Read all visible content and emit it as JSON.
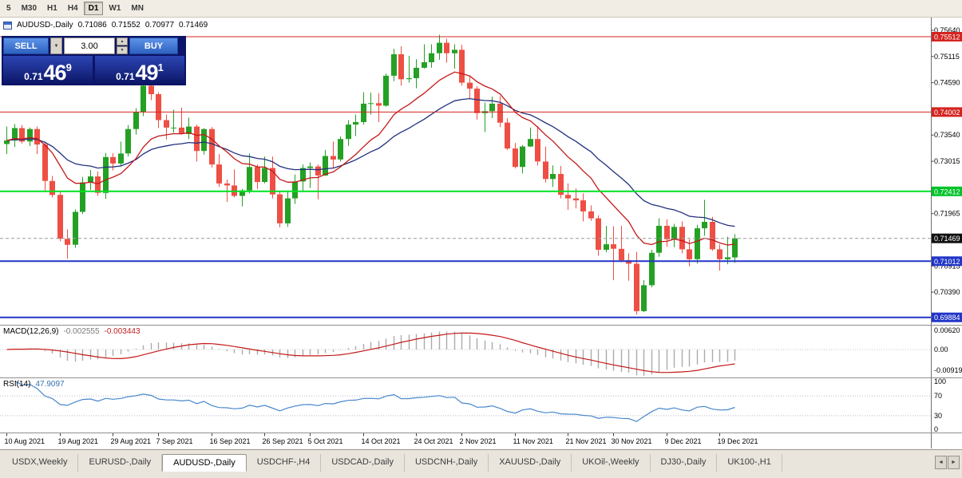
{
  "toolbar": {
    "timeframes": [
      {
        "label": "5",
        "active": false
      },
      {
        "label": "M30",
        "active": false
      },
      {
        "label": "H1",
        "active": false
      },
      {
        "label": "H4",
        "active": false
      },
      {
        "label": "D1",
        "active": true
      },
      {
        "label": "W1",
        "active": false
      },
      {
        "label": "MN",
        "active": false
      }
    ]
  },
  "chart": {
    "header": {
      "symbol": "AUDUSD-,Daily",
      "open": "0.71086",
      "high": "0.71552",
      "low": "0.70977",
      "close": "0.71469"
    }
  },
  "trade_panel": {
    "sell_label": "SELL",
    "buy_label": "BUY",
    "volume": "3.00",
    "volume_dropdown": "▼",
    "spinner_up": "▲",
    "spinner_down": "▼",
    "sell_price": {
      "prefix": "0.71",
      "big": "46",
      "sup": "9"
    },
    "buy_price": {
      "prefix": "0.71",
      "big": "49",
      "sup": "1"
    }
  },
  "macd_panel": {
    "label": "MACD(12,26,9)",
    "value_main": "-0.002555",
    "value_signal": "-0.003443",
    "axis": [
      "0.00620",
      "0.00",
      "-0.00919"
    ]
  },
  "rsi_panel": {
    "label": "RSI(14)",
    "value": "47.9097",
    "axis": [
      "100",
      "70",
      "30",
      "0"
    ]
  },
  "price_axis": {
    "labels": [
      {
        "text": "0.75640",
        "price": 0.7564
      },
      {
        "text": "0.75115",
        "price": 0.75115
      },
      {
        "text": "0.74590",
        "price": 0.7459
      },
      {
        "text": "0.73540",
        "price": 0.7354
      },
      {
        "text": "0.73015",
        "price": 0.73015
      },
      {
        "text": "0.71965",
        "price": 0.71965
      },
      {
        "text": "0.70915",
        "price": 0.70915
      },
      {
        "text": "0.70390",
        "price": 0.7039
      }
    ],
    "badges": [
      {
        "text": "0.75512",
        "price": 0.75512,
        "color": "#d42420"
      },
      {
        "text": "0.74002",
        "price": 0.74002,
        "color": "#d42420"
      },
      {
        "text": "0.72412",
        "price": 0.72412,
        "color": "#00c22a"
      },
      {
        "text": "0.71469",
        "price": 0.71469,
        "color": "#111111"
      },
      {
        "text": "0.71012",
        "price": 0.71012,
        "color": "#2236c8"
      },
      {
        "text": "0.69884",
        "price": 0.69884,
        "color": "#2236c8"
      }
    ]
  },
  "tabbar": {
    "scroll_left": "◄",
    "scroll_right": "►",
    "tabs": [
      {
        "label": "USDX,Weekly",
        "active": false
      },
      {
        "label": "EURUSD-,Daily",
        "active": false
      },
      {
        "label": "AUDUSD-,Daily",
        "active": true
      },
      {
        "label": "USDCHF-,H4",
        "active": false
      },
      {
        "label": "USDCAD-,Daily",
        "active": false
      },
      {
        "label": "USDCNH-,Daily",
        "active": false
      },
      {
        "label": "XAUUSD-,Daily",
        "active": false
      },
      {
        "label": "UKOil-,Weekly",
        "active": false
      },
      {
        "label": "DJ30-,Daily",
        "active": false
      },
      {
        "label": "UK100-,H1",
        "active": false
      }
    ]
  },
  "chart_data": {
    "type": "candlestick",
    "symbol": "AUDUSD-",
    "timeframe": "Daily",
    "colors": {
      "up": "#24a024",
      "down": "#ee4f44"
    },
    "overlays": [
      {
        "name": "ma-fast",
        "period": 12,
        "color": "#c41818"
      },
      {
        "name": "ma-slow",
        "period": 26,
        "color": "#22307e"
      }
    ],
    "indicators": {
      "macd": {
        "fast": 12,
        "slow": 26,
        "signal": 9,
        "hist_color": "#ababab",
        "signal_color": "#c41818"
      },
      "rsi": {
        "period": 14,
        "color": "#4787cc",
        "levels": [
          70,
          30
        ]
      }
    },
    "hlines": [
      {
        "price": 0.75512,
        "color": "#d42420",
        "width": 1
      },
      {
        "price": 0.74002,
        "color": "#d42420",
        "width": 1
      },
      {
        "price": 0.72412,
        "color": "#00e022",
        "width": 2
      },
      {
        "price": 0.71012,
        "color": "#2236c8",
        "width": 2
      },
      {
        "price": 0.69884,
        "color": "#2236c8",
        "width": 2
      },
      {
        "price": 0.71469,
        "color": "#999999",
        "width": 1,
        "dash": "4,3"
      }
    ],
    "date_labels": [
      [
        0,
        "10 Aug 2021"
      ],
      [
        7,
        "19 Aug 2021"
      ],
      [
        14,
        "29 Aug 2021"
      ],
      [
        20,
        "7 Sep 2021"
      ],
      [
        27,
        "16 Sep 2021"
      ],
      [
        34,
        "26 Sep 2021"
      ],
      [
        40,
        "5 Oct 2021"
      ],
      [
        47,
        "14 Oct 2021"
      ],
      [
        54,
        "24 Oct 2021"
      ],
      [
        60,
        "2 Nov 2021"
      ],
      [
        67,
        "11 Nov 2021"
      ],
      [
        74,
        "21 Nov 2021"
      ],
      [
        80,
        "30 Nov 2021"
      ],
      [
        87,
        "9 Dec 2021"
      ],
      [
        94,
        "19 Dec 2021"
      ]
    ],
    "candles": [
      [
        0.7336,
        0.7371,
        0.7316,
        0.7343
      ],
      [
        0.7343,
        0.7376,
        0.733,
        0.7368
      ],
      [
        0.7368,
        0.7374,
        0.7337,
        0.7341
      ],
      [
        0.7341,
        0.7369,
        0.7332,
        0.7366
      ],
      [
        0.7366,
        0.7371,
        0.7316,
        0.7335
      ],
      [
        0.7335,
        0.7341,
        0.7241,
        0.7262
      ],
      [
        0.7262,
        0.7272,
        0.7229,
        0.7234
      ],
      [
        0.7234,
        0.7241,
        0.7141,
        0.7146
      ],
      [
        0.7146,
        0.7165,
        0.7106,
        0.7134
      ],
      [
        0.7134,
        0.7205,
        0.7128,
        0.72
      ],
      [
        0.72,
        0.727,
        0.7196,
        0.7259
      ],
      [
        0.7259,
        0.7284,
        0.7244,
        0.7271
      ],
      [
        0.7271,
        0.7281,
        0.7232,
        0.7238
      ],
      [
        0.7238,
        0.7318,
        0.7226,
        0.731
      ],
      [
        0.731,
        0.7318,
        0.7283,
        0.7297
      ],
      [
        0.7297,
        0.7341,
        0.7291,
        0.7317
      ],
      [
        0.7317,
        0.7374,
        0.7311,
        0.7366
      ],
      [
        0.7366,
        0.7408,
        0.7355,
        0.74
      ],
      [
        0.74,
        0.7478,
        0.7392,
        0.7453
      ],
      [
        0.7453,
        0.7462,
        0.7424,
        0.7436
      ],
      [
        0.7436,
        0.744,
        0.7368,
        0.7384
      ],
      [
        0.7384,
        0.7395,
        0.7345,
        0.7369
      ],
      [
        0.7369,
        0.7405,
        0.7359,
        0.7369
      ],
      [
        0.7369,
        0.7409,
        0.7355,
        0.7356
      ],
      [
        0.7356,
        0.7389,
        0.7346,
        0.7371
      ],
      [
        0.7371,
        0.7375,
        0.7301,
        0.7322
      ],
      [
        0.7322,
        0.7368,
        0.7315,
        0.7366
      ],
      [
        0.7366,
        0.737,
        0.7289,
        0.7295
      ],
      [
        0.7295,
        0.7316,
        0.725,
        0.7257
      ],
      [
        0.7257,
        0.7265,
        0.722,
        0.7253
      ],
      [
        0.7253,
        0.7285,
        0.7229,
        0.7232
      ],
      [
        0.7232,
        0.7246,
        0.7211,
        0.7243
      ],
      [
        0.7243,
        0.7317,
        0.7237,
        0.729
      ],
      [
        0.729,
        0.7295,
        0.7246,
        0.726
      ],
      [
        0.726,
        0.7311,
        0.7257,
        0.7288
      ],
      [
        0.7288,
        0.7311,
        0.7227,
        0.7235
      ],
      [
        0.7235,
        0.7242,
        0.7169,
        0.7177
      ],
      [
        0.7177,
        0.7241,
        0.717,
        0.7227
      ],
      [
        0.7227,
        0.7275,
        0.7216,
        0.7261
      ],
      [
        0.7261,
        0.7295,
        0.724,
        0.7288
      ],
      [
        0.7288,
        0.7299,
        0.7248,
        0.7291
      ],
      [
        0.7291,
        0.7295,
        0.7225,
        0.7273
      ],
      [
        0.7273,
        0.7324,
        0.7272,
        0.7312
      ],
      [
        0.7312,
        0.7341,
        0.7288,
        0.7305
      ],
      [
        0.7305,
        0.7351,
        0.7301,
        0.7346
      ],
      [
        0.7346,
        0.7384,
        0.7332,
        0.7375
      ],
      [
        0.7375,
        0.7395,
        0.7352,
        0.738
      ],
      [
        0.738,
        0.744,
        0.7375,
        0.7417
      ],
      [
        0.7417,
        0.7439,
        0.7395,
        0.7418
      ],
      [
        0.7418,
        0.7438,
        0.738,
        0.7413
      ],
      [
        0.7413,
        0.7477,
        0.7411,
        0.7473
      ],
      [
        0.7473,
        0.7527,
        0.7462,
        0.7516
      ],
      [
        0.7516,
        0.7532,
        0.7453,
        0.7466
      ],
      [
        0.7466,
        0.7513,
        0.7459,
        0.7468
      ],
      [
        0.7468,
        0.7506,
        0.7448,
        0.7489
      ],
      [
        0.7489,
        0.7536,
        0.7487,
        0.75
      ],
      [
        0.75,
        0.7536,
        0.7489,
        0.7518
      ],
      [
        0.7518,
        0.7555,
        0.7505,
        0.7539
      ],
      [
        0.7539,
        0.7547,
        0.7499,
        0.7518
      ],
      [
        0.7518,
        0.7536,
        0.7487,
        0.7525
      ],
      [
        0.7525,
        0.7535,
        0.7453,
        0.7459
      ],
      [
        0.7459,
        0.7471,
        0.7427,
        0.7447
      ],
      [
        0.7447,
        0.7452,
        0.7385,
        0.7398
      ],
      [
        0.7398,
        0.7419,
        0.736,
        0.7402
      ],
      [
        0.7402,
        0.7431,
        0.7388,
        0.7417
      ],
      [
        0.7417,
        0.7432,
        0.737,
        0.7379
      ],
      [
        0.7379,
        0.7388,
        0.7324,
        0.7327
      ],
      [
        0.7327,
        0.7338,
        0.7287,
        0.729
      ],
      [
        0.729,
        0.7334,
        0.7277,
        0.7331
      ],
      [
        0.7331,
        0.7369,
        0.733,
        0.7346
      ],
      [
        0.7346,
        0.7372,
        0.7293,
        0.7301
      ],
      [
        0.7301,
        0.7331,
        0.7259,
        0.7266
      ],
      [
        0.7266,
        0.7293,
        0.725,
        0.7276
      ],
      [
        0.7276,
        0.7292,
        0.7227,
        0.7234
      ],
      [
        0.7234,
        0.7257,
        0.7204,
        0.7227
      ],
      [
        0.7227,
        0.7247,
        0.7207,
        0.7223
      ],
      [
        0.7223,
        0.7237,
        0.7181,
        0.7201
      ],
      [
        0.7201,
        0.7213,
        0.7182,
        0.7187
      ],
      [
        0.7187,
        0.7193,
        0.7112,
        0.7124
      ],
      [
        0.7124,
        0.7172,
        0.7119,
        0.7135
      ],
      [
        0.7135,
        0.7171,
        0.7063,
        0.7126
      ],
      [
        0.7126,
        0.7172,
        0.7099,
        0.7103
      ],
      [
        0.7103,
        0.7117,
        0.7062,
        0.7096
      ],
      [
        0.7096,
        0.712,
        0.6994,
        0.7001
      ],
      [
        0.7001,
        0.7063,
        0.6999,
        0.7053
      ],
      [
        0.7053,
        0.7124,
        0.7049,
        0.7118
      ],
      [
        0.7118,
        0.7187,
        0.711,
        0.7172
      ],
      [
        0.7172,
        0.7185,
        0.713,
        0.7145
      ],
      [
        0.7145,
        0.7176,
        0.7129,
        0.717
      ],
      [
        0.717,
        0.7181,
        0.7117,
        0.7125
      ],
      [
        0.7125,
        0.7145,
        0.7091,
        0.7105
      ],
      [
        0.7105,
        0.7174,
        0.7096,
        0.7167
      ],
      [
        0.7167,
        0.7224,
        0.7152,
        0.718
      ],
      [
        0.718,
        0.719,
        0.7122,
        0.7125
      ],
      [
        0.7125,
        0.7135,
        0.7082,
        0.7105
      ],
      [
        0.7105,
        0.715,
        0.7095,
        0.7109
      ],
      [
        0.71086,
        0.71552,
        0.70977,
        0.71469
      ]
    ]
  }
}
